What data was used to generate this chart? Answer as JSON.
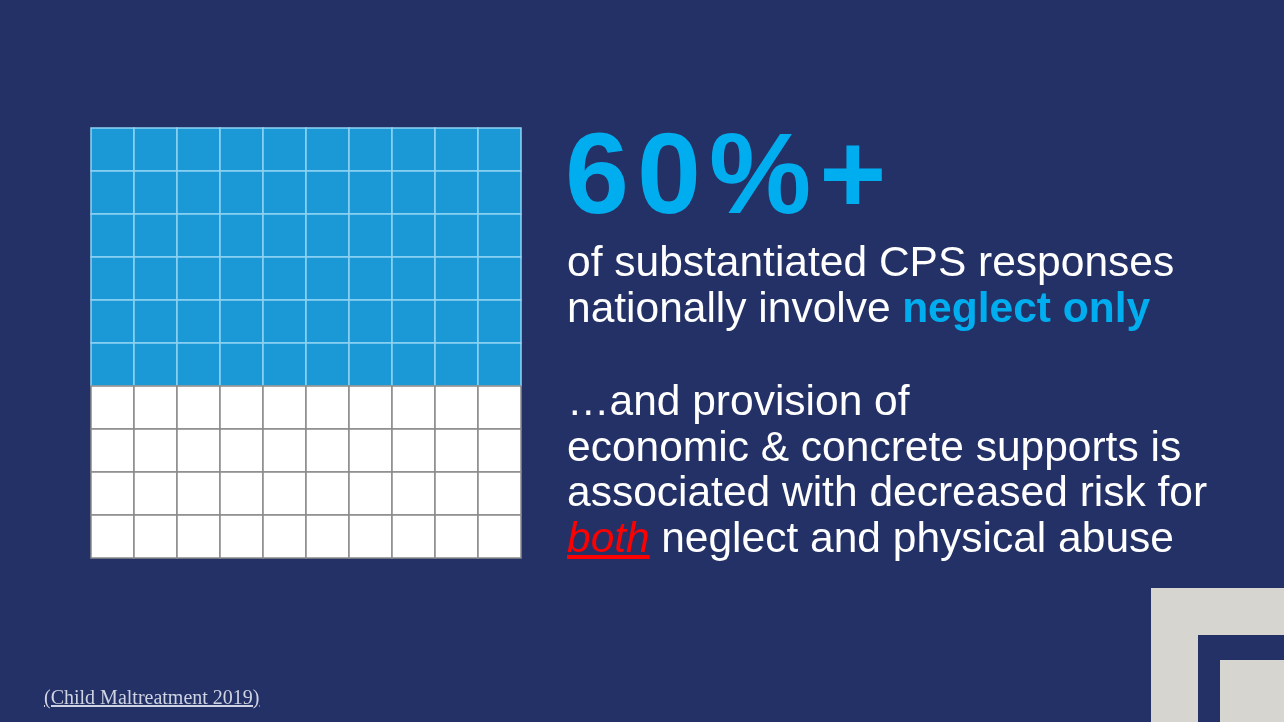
{
  "chart_data": {
    "type": "other",
    "values": [
      60
    ],
    "value_labels": [
      "60%+"
    ],
    "color": "#1b98d6",
    "annotations": [
      "of substantiated CPS responses",
      "nationally involve",
      "neglect only",
      "…and provision of",
      "economic & concrete supports is",
      "associated with decreased risk for",
      "both",
      "neglect and physical abuse",
      "(Child Maltreatment 2019)"
    ]
  }
}
